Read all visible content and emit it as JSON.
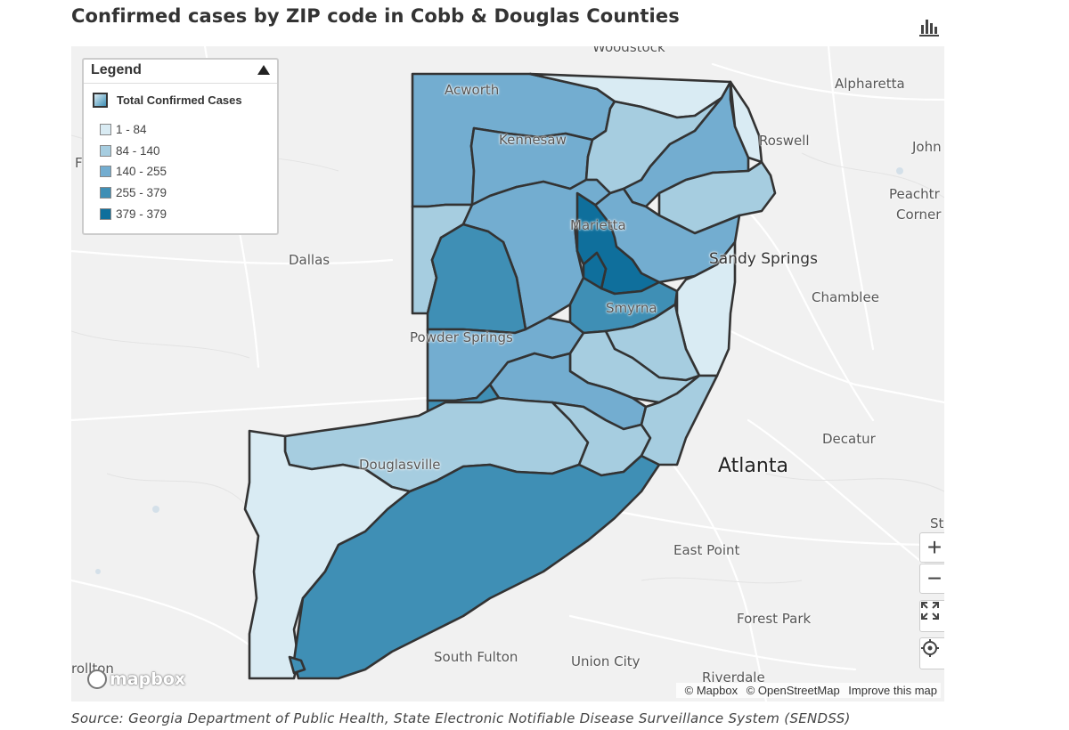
{
  "title": "Confirmed cases by ZIP code in Cobb & Douglas Counties",
  "toolbar": {
    "chart_icon": "bar-chart-icon"
  },
  "legend": {
    "title": "Legend",
    "subtitle": "Total Confirmed Cases",
    "bins": [
      {
        "label": "1 - 84",
        "color": "#d9ebf3"
      },
      {
        "label": "84 - 140",
        "color": "#a6cde0"
      },
      {
        "label": "140 - 255",
        "color": "#73add0"
      },
      {
        "label": "255 - 379",
        "color": "#3f8fb5"
      },
      {
        "label": "379 - 379",
        "color": "#0f6f9c"
      }
    ]
  },
  "places": {
    "woodstock": "Woodstock",
    "alpharetta": "Alpharetta",
    "acworth": "Acworth",
    "kennesaw": "Kennesaw",
    "roswell": "Roswell",
    "johns": "John",
    "peachtree1": "Peachtr",
    "peachtree2": "Corner",
    "marietta": "Marietta",
    "dallas": "Dallas",
    "sandy_springs": "Sandy Springs",
    "chamblee": "Chamblee",
    "smyrna": "Smyrna",
    "powder_springs": "Powder Springs",
    "decatur": "Decatur",
    "atlanta": "Atlanta",
    "douglasville": "Douglasville",
    "east_point": "East Point",
    "forest_park": "Forest Park",
    "south_fulton": "South Fulton",
    "union_city": "Union City",
    "riverdale": "Riverdale",
    "stone": "St",
    "villa_rica": "rollton",
    "left_edge": "F"
  },
  "controls": {
    "zoom_in": "+",
    "zoom_out": "−"
  },
  "logo": "mapbox",
  "attribution": {
    "mapbox": "© Mapbox",
    "osm": "© OpenStreetMap",
    "improve": "Improve this map"
  },
  "source": "Source: Georgia Department of Public Health, State Electronic Notifiable Disease Surveillance System (SENDSS)"
}
